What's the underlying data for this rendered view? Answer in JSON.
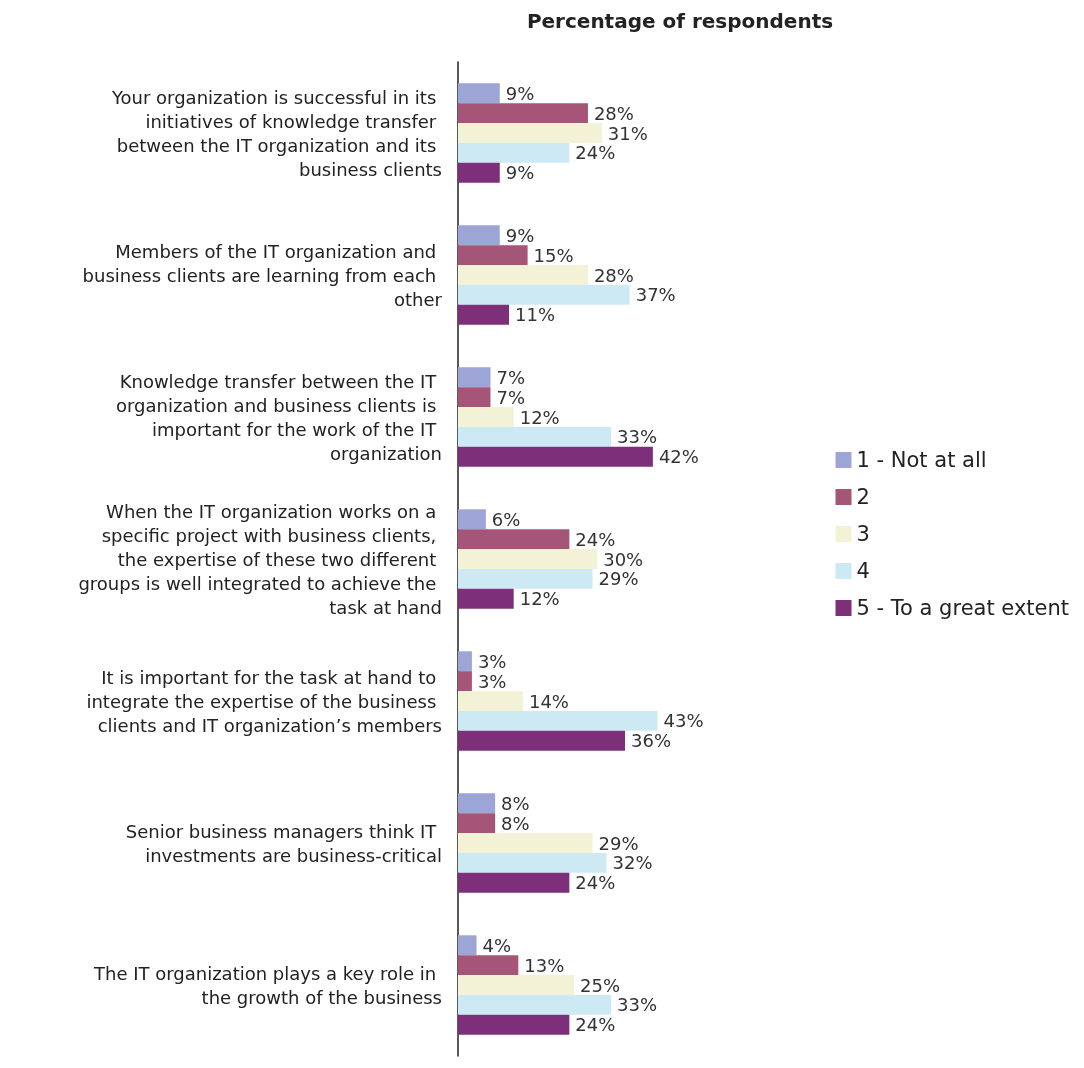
{
  "chart_data": {
    "type": "bar",
    "orientation": "horizontal",
    "title": "Percentage of respondents",
    "categories": [
      "Your organization is successful in its initiatives of knowledge transfer between the IT organization and its business clients",
      "Members of the IT organization and business clients are learning from each other",
      "Knowledge transfer between the IT organization and business clients is important for the work of the IT organization",
      "When the IT organization works on a specific project with business clients, the expertise of these two different groups is well integrated to achieve the task at hand",
      "It is important for the task at hand to integrate the expertise of the business clients and IT organization’s members",
      "Senior business managers think IT investments are business-critical",
      "The IT organization plays a key role in the growth of the business"
    ],
    "series": [
      {
        "name": "1 - Not at all",
        "color": "#9da5d6",
        "values": [
          9,
          9,
          7,
          6,
          3,
          8,
          4
        ],
        "value_labels": [
          "9%",
          "9%",
          "7%",
          "6%",
          "3%",
          "8%",
          "4%"
        ]
      },
      {
        "name": "2",
        "color": "#a55577",
        "values": [
          28,
          15,
          7,
          24,
          3,
          8,
          13
        ],
        "value_labels": [
          "28%",
          "15%",
          "7%",
          "24%",
          "3%",
          "8%",
          "13%"
        ]
      },
      {
        "name": "3",
        "color": "#f4f2d6",
        "values": [
          31,
          28,
          12,
          30,
          14,
          29,
          25
        ],
        "value_labels": [
          "31%",
          "28%",
          "12%",
          "30%",
          "14%",
          "29%",
          "25%"
        ]
      },
      {
        "name": "4",
        "color": "#cde9f3",
        "values": [
          24,
          37,
          33,
          29,
          43,
          32,
          33
        ],
        "value_labels": [
          "24%",
          "37%",
          "33%",
          "29%",
          "43%",
          "32%",
          "33%"
        ]
      },
      {
        "name": "5 - To a great extent",
        "color": "#7d3079",
        "values": [
          9,
          11,
          42,
          12,
          36,
          24,
          24
        ],
        "value_labels": [
          "9%",
          "11%",
          "42%",
          "12%",
          "36%",
          "24%",
          "24%"
        ]
      }
    ],
    "legend": "right",
    "grid": false
  }
}
